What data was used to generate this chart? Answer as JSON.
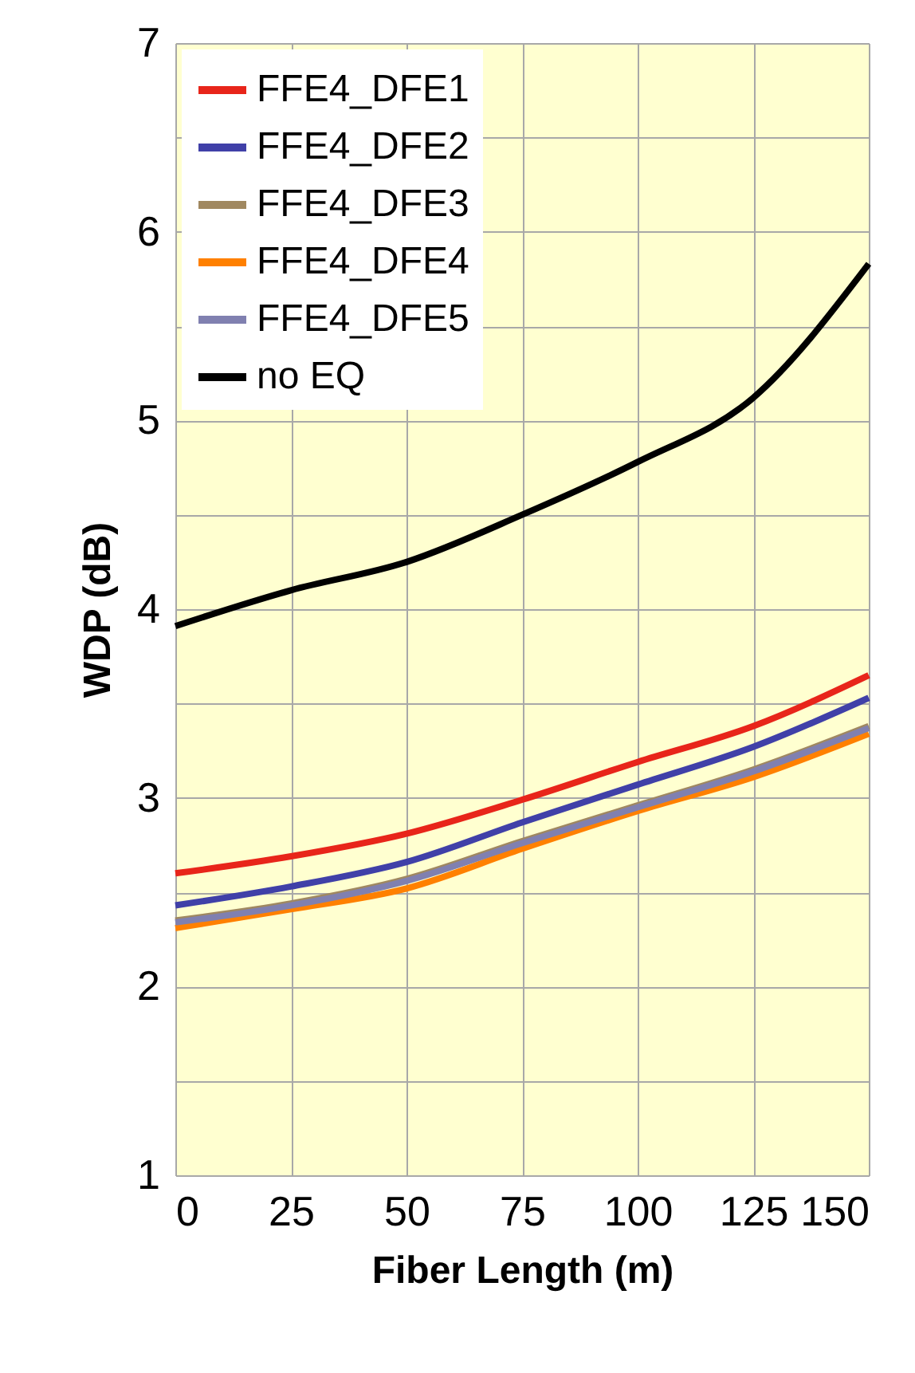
{
  "chart_data": {
    "type": "line",
    "xlabel": "Fiber Length (m)",
    "ylabel": "WDP (dB)",
    "x": [
      0,
      25,
      50,
      75,
      100,
      125,
      150
    ],
    "series": [
      {
        "name": "FFE4_DFE1",
        "color": "#e8251a",
        "values": [
          2.6,
          2.69,
          2.81,
          2.99,
          3.19,
          3.38,
          3.65
        ]
      },
      {
        "name": "FFE4_DFE2",
        "color": "#4040a8",
        "values": [
          2.43,
          2.53,
          2.66,
          2.87,
          3.07,
          3.27,
          3.53
        ]
      },
      {
        "name": "FFE4_DFE3",
        "color": "#a08860",
        "values": [
          2.35,
          2.44,
          2.57,
          2.77,
          2.96,
          3.15,
          3.38
        ]
      },
      {
        "name": "FFE4_DFE4",
        "color": "#ff8000",
        "values": [
          2.31,
          2.41,
          2.52,
          2.73,
          2.93,
          3.11,
          3.34
        ]
      },
      {
        "name": "FFE4_DFE5",
        "color": "#8080b0",
        "values": [
          2.34,
          2.43,
          2.56,
          2.76,
          2.95,
          3.14,
          3.37
        ]
      },
      {
        "name": "no EQ",
        "color": "#000000",
        "values": [
          3.91,
          4.1,
          4.25,
          4.5,
          4.78,
          5.12,
          5.83
        ]
      }
    ],
    "xlim": [
      0,
      150
    ],
    "xticks": [
      0,
      25,
      50,
      75,
      100,
      125,
      150
    ],
    "ylim": [
      1,
      7
    ],
    "yticks": [
      1,
      {
        "value": 1.5,
        "label": null
      },
      2,
      {
        "value": 2.5,
        "label": null
      },
      3,
      {
        "value": 3.5,
        "label": null
      },
      4,
      {
        "value": 4.5,
        "label": null
      },
      5,
      {
        "value": 5.5,
        "label": null
      },
      6,
      {
        "value": 6.5,
        "label": null
      },
      7
    ],
    "grid": true,
    "legend": "top left",
    "marker": "none",
    "line_style": "solid"
  }
}
